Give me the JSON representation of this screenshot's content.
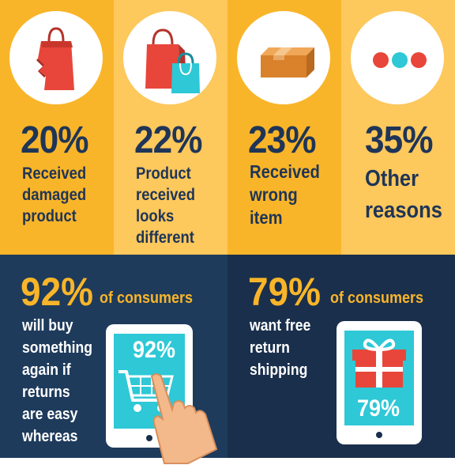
{
  "stats": [
    {
      "percent": "20%",
      "label": "Received\ndamaged\nproduct",
      "icon": "torn-shopping-bag-icon"
    },
    {
      "percent": "22%",
      "label": "Product\nreceived\nlooks\ndifferent",
      "icon": "shopping-bags-icon"
    },
    {
      "percent": "23%",
      "label": "Received\nwrong\nitem",
      "icon": "cardboard-box-icon"
    },
    {
      "percent": "35%",
      "label": "Other\nreasons",
      "icon": "more-dots-icon"
    }
  ],
  "bottom": {
    "left": {
      "percent": "92%",
      "of_text": "of consumers",
      "desc": "will buy\nsomething\nagain if\nreturns\nare easy\nwhereas",
      "tablet_percent": "92%",
      "icon": "shopping-cart-icon"
    },
    "right": {
      "percent": "79%",
      "of_text": "of consumers",
      "desc": "want free\nreturn\nshipping",
      "tablet_percent": "79%",
      "icon": "gift-box-icon"
    }
  },
  "colors": {
    "yellow": "#f9b529",
    "light_yellow": "#fdc85c",
    "navy": "#1f3557",
    "teal": "#2ec8d6",
    "red": "#e8463a"
  }
}
